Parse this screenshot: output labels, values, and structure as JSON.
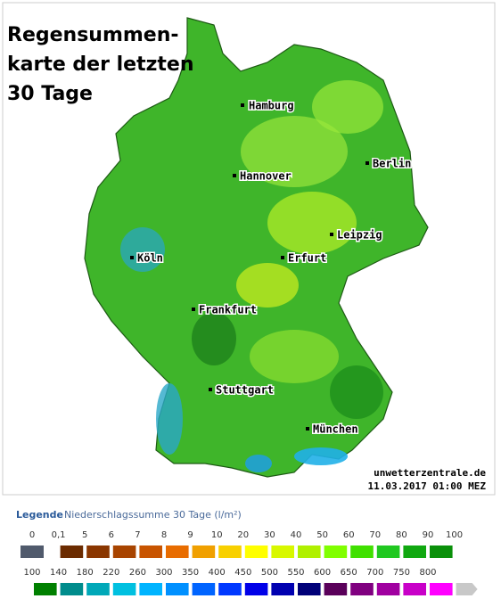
{
  "title": "Regensummen-\nkarte der letzten\n30 Tage",
  "cities": [
    "Hamburg",
    "Berlin",
    "Hannover",
    "Leipzig",
    "Köln",
    "Erfurt",
    "Frankfurt",
    "Stuttgart",
    "München"
  ],
  "credit": "unwetterzentrale.de",
  "timestamp": "11.03.2017 01:00 MEZ",
  "legend": {
    "heading": "Legende",
    "caption": "Niederschlagssumme 30 Tage  (l/m²)",
    "rows": [
      {
        "labels": [
          "0",
          "0,1",
          "5",
          "6",
          "7",
          "8",
          "9",
          "10",
          "20",
          "30",
          "40",
          "50",
          "60",
          "70",
          "80",
          "90",
          "100"
        ],
        "colors": [
          "#505a6c",
          null,
          "#6b2b00",
          "#8a3600",
          "#a84400",
          "#c85400",
          "#e86c00",
          "#f0a000",
          "#f8d000",
          "#ffff00",
          "#d8f800",
          "#b0f000",
          "#80ff00",
          "#40e000",
          "#20c820",
          "#10a810",
          "#0a900a"
        ]
      },
      {
        "labels": [
          "100",
          "140",
          "180",
          "220",
          "260",
          "300",
          "350",
          "400",
          "450",
          "500",
          "550",
          "600",
          "650",
          "700",
          "750",
          "800"
        ],
        "colors": [
          "#008000",
          "#008c8c",
          "#00a8b8",
          "#00c0e0",
          "#00b4ff",
          "#0090ff",
          "#0064ff",
          "#0038ff",
          "#0000e8",
          "#0000b0",
          "#000078",
          "#5a005a",
          "#800080",
          "#a000a0",
          "#c800c8",
          "#ff00ff",
          "#c8c8c8"
        ]
      }
    ]
  }
}
